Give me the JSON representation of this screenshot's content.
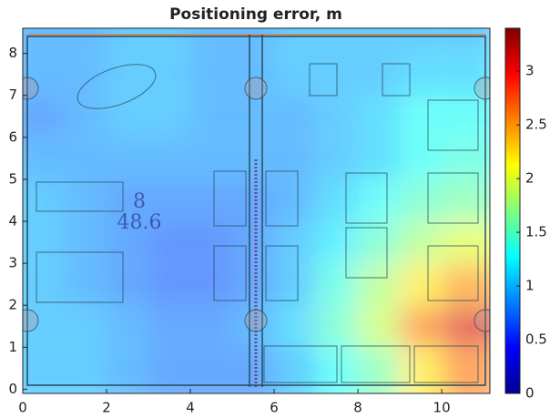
{
  "chart_data": {
    "type": "heatmap",
    "title": "Positioning error, m",
    "x": [
      0.5,
      1.5,
      2.5,
      3.5,
      4.5,
      5.5,
      6.5,
      7.5,
      8.5,
      9.5,
      10.5
    ],
    "y": [
      0.5,
      1.5,
      2.5,
      3.5,
      4.5,
      5.5,
      6.5,
      7.5,
      8.5
    ],
    "z": [
      [
        1.0,
        1.0,
        0.9,
        0.8,
        0.8,
        0.8,
        1.0,
        1.3,
        1.6,
        2.2,
        2.6
      ],
      [
        1.0,
        1.0,
        0.9,
        0.8,
        0.8,
        0.9,
        1.1,
        1.5,
        1.9,
        2.6,
        3.1
      ],
      [
        1.0,
        0.9,
        0.8,
        0.7,
        0.7,
        0.8,
        1.0,
        1.4,
        1.8,
        2.2,
        2.5
      ],
      [
        1.0,
        0.9,
        0.8,
        0.7,
        0.7,
        0.8,
        1.0,
        1.2,
        1.5,
        1.8,
        2.0
      ],
      [
        1.0,
        0.9,
        0.8,
        0.8,
        0.8,
        0.8,
        0.9,
        1.1,
        1.3,
        1.5,
        1.6
      ],
      [
        0.9,
        0.9,
        0.9,
        0.9,
        0.9,
        0.9,
        0.9,
        1.0,
        1.1,
        1.3,
        1.4
      ],
      [
        0.8,
        0.9,
        1.0,
        1.0,
        0.9,
        0.9,
        0.9,
        1.0,
        1.1,
        1.3,
        1.3
      ],
      [
        0.9,
        0.9,
        1.0,
        1.0,
        0.9,
        0.9,
        1.0,
        1.0,
        1.0,
        1.1,
        1.1
      ],
      [
        0.9,
        0.9,
        1.0,
        1.0,
        0.9,
        0.9,
        1.0,
        1.0,
        1.0,
        1.0,
        1.0
      ]
    ],
    "xlim": [
      0,
      11.15
    ],
    "xticks": [
      0,
      2,
      4,
      6,
      8,
      10
    ],
    "ylim": [
      -0.1,
      8.6
    ],
    "yticks": [
      0,
      1,
      2,
      3,
      4,
      5,
      6,
      7,
      8
    ],
    "clim": [
      0,
      3.4
    ],
    "cticks": [
      0,
      0.5,
      1,
      1.5,
      2,
      2.5,
      3
    ],
    "colormap": "jet",
    "floorplan_labels": [
      "8",
      "48.6"
    ]
  }
}
